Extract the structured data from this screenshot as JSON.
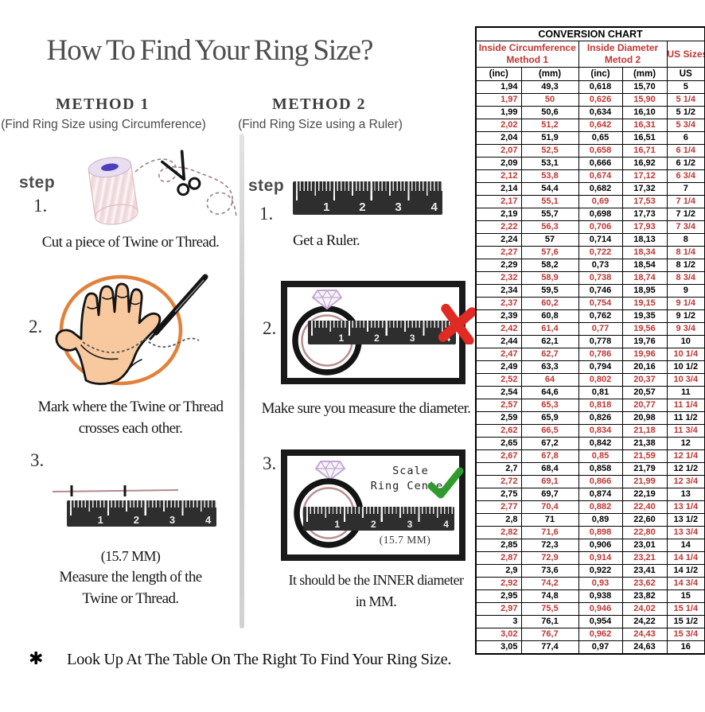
{
  "title": "How To Find Your Ring Size?",
  "footer": {
    "asterisk": "✱",
    "text": "Look Up At The Table On The Right To Find Your Ring Size."
  },
  "shared": {
    "ruler_numbers": [
      "1",
      "2",
      "3",
      "4"
    ]
  },
  "icons": [
    "twine-spool-icon",
    "scissors-icon",
    "thread-icon",
    "hand-icon",
    "pen-icon",
    "ruler-icon",
    "ring-icon",
    "diamond-icon",
    "x-mark-icon",
    "check-mark-icon",
    "asterisk-icon"
  ],
  "colors": {
    "accent_red": "#bf3632",
    "x_red": "#e02a24",
    "check_green": "#2f9b2f",
    "hand_fill": "#f8c89f",
    "circle_orange": "#e2813a",
    "diamond_lavender": "#c3a8d1",
    "ring_inner": "#b98f8f",
    "title_gray": "#4e4e4e",
    "table_border": "#000000"
  },
  "method1": {
    "heading": "METHOD 1",
    "subheading": "(Find Ring Size using Circumference)",
    "step_label": "step",
    "steps": [
      {
        "num": "1.",
        "caption": "Cut a piece of Twine or Thread."
      },
      {
        "num": "2.",
        "caption_line1": "Mark where the Twine or Thread",
        "caption_line2": "crosses each other."
      },
      {
        "num": "3.",
        "measurement": "(15.7 MM)",
        "caption_line1": "Measure the length of the",
        "caption_line2": "Twine or Thread."
      }
    ]
  },
  "method2": {
    "heading": "METHOD 2",
    "subheading": "(Find Ring Size using a Ruler)",
    "step_label": "step",
    "steps": [
      {
        "num": "1.",
        "caption": "Get a Ruler."
      },
      {
        "num": "2.",
        "caption": "Make sure you measure the diameter."
      },
      {
        "num": "3.",
        "scale_label_line1": "Scale",
        "scale_label_line2": "Ring Center",
        "measurement": "(15.7 MM)",
        "caption_line1": "It should be the INNER diameter",
        "caption_line2": "in MM."
      }
    ]
  },
  "conversion_chart": {
    "type": "table",
    "title": "CONVERSION CHART",
    "headers": {
      "group1_line1": "Inside Circumference",
      "group1_line2": "Method 1",
      "group2_line1": "Inside Diameter",
      "group2_line2": "Metod 2",
      "group3": "US Sizes"
    },
    "subheaders": [
      "(inc)",
      "(mm)",
      "(inc)",
      "(mm)",
      "US"
    ],
    "rows": [
      {
        "red": false,
        "cells": [
          "1,94",
          "49,3",
          "0,618",
          "15,70",
          "5"
        ]
      },
      {
        "red": true,
        "cells": [
          "1,97",
          "50",
          "0,626",
          "15,90",
          "5 1/4"
        ]
      },
      {
        "red": false,
        "cells": [
          "1,99",
          "50,6",
          "0,634",
          "16,10",
          "5 1/2"
        ]
      },
      {
        "red": true,
        "cells": [
          "2,02",
          "51,2",
          "0,642",
          "16,31",
          "5 3/4"
        ]
      },
      {
        "red": false,
        "cells": [
          "2,04",
          "51,9",
          "0,65",
          "16,51",
          "6"
        ]
      },
      {
        "red": true,
        "cells": [
          "2,07",
          "52,5",
          "0,658",
          "16,71",
          "6 1/4"
        ]
      },
      {
        "red": false,
        "cells": [
          "2,09",
          "53,1",
          "0,666",
          "16,92",
          "6 1/2"
        ]
      },
      {
        "red": true,
        "cells": [
          "2,12",
          "53,8",
          "0,674",
          "17,12",
          "6 3/4"
        ]
      },
      {
        "red": false,
        "cells": [
          "2,14",
          "54,4",
          "0,682",
          "17,32",
          "7"
        ]
      },
      {
        "red": true,
        "cells": [
          "2,17",
          "55,1",
          "0,69",
          "17,53",
          "7 1/4"
        ]
      },
      {
        "red": false,
        "cells": [
          "2,19",
          "55,7",
          "0,698",
          "17,73",
          "7 1/2"
        ]
      },
      {
        "red": true,
        "cells": [
          "2,22",
          "56,3",
          "0,706",
          "17,93",
          "7 3/4"
        ]
      },
      {
        "red": false,
        "cells": [
          "2,24",
          "57",
          "0,714",
          "18,13",
          "8"
        ]
      },
      {
        "red": true,
        "cells": [
          "2,27",
          "57,6",
          "0,722",
          "18,34",
          "8 1/4"
        ]
      },
      {
        "red": false,
        "cells": [
          "2,29",
          "58,2",
          "0,73",
          "18,54",
          "8 1/2"
        ]
      },
      {
        "red": true,
        "cells": [
          "2,32",
          "58,9",
          "0,738",
          "18,74",
          "8 3/4"
        ]
      },
      {
        "red": false,
        "cells": [
          "2,34",
          "59,5",
          "0,746",
          "18,95",
          "9"
        ]
      },
      {
        "red": true,
        "cells": [
          "2,37",
          "60,2",
          "0,754",
          "19,15",
          "9 1/4"
        ]
      },
      {
        "red": false,
        "cells": [
          "2,39",
          "60,8",
          "0,762",
          "19,35",
          "9 1/2"
        ]
      },
      {
        "red": true,
        "cells": [
          "2,42",
          "61,4",
          "0,77",
          "19,56",
          "9 3/4"
        ]
      },
      {
        "red": false,
        "cells": [
          "2,44",
          "62,1",
          "0,778",
          "19,76",
          "10"
        ]
      },
      {
        "red": true,
        "cells": [
          "2,47",
          "62,7",
          "0,786",
          "19,96",
          "10 1/4"
        ]
      },
      {
        "red": false,
        "cells": [
          "2,49",
          "63,3",
          "0,794",
          "20,16",
          "10 1/2"
        ]
      },
      {
        "red": true,
        "cells": [
          "2,52",
          "64",
          "0,802",
          "20,37",
          "10 3/4"
        ]
      },
      {
        "red": false,
        "cells": [
          "2,54",
          "64,6",
          "0,81",
          "20,57",
          "11"
        ]
      },
      {
        "red": true,
        "cells": [
          "2,57",
          "65,3",
          "0,818",
          "20,77",
          "11 1/4"
        ]
      },
      {
        "red": false,
        "cells": [
          "2,59",
          "65,9",
          "0,826",
          "20,98",
          "11 1/2"
        ]
      },
      {
        "red": true,
        "cells": [
          "2,62",
          "66,5",
          "0,834",
          "21,18",
          "11 3/4"
        ]
      },
      {
        "red": false,
        "cells": [
          "2,65",
          "67,2",
          "0,842",
          "21,38",
          "12"
        ]
      },
      {
        "red": true,
        "cells": [
          "2,67",
          "67,8",
          "0,85",
          "21,59",
          "12 1/4"
        ]
      },
      {
        "red": false,
        "cells": [
          "2,7",
          "68,4",
          "0,858",
          "21,79",
          "12 1/2"
        ]
      },
      {
        "red": true,
        "cells": [
          "2,72",
          "69,1",
          "0,866",
          "21,99",
          "12 3/4"
        ]
      },
      {
        "red": false,
        "cells": [
          "2,75",
          "69,7",
          "0,874",
          "22,19",
          "13"
        ]
      },
      {
        "red": true,
        "cells": [
          "2,77",
          "70,4",
          "0,882",
          "22,40",
          "13 1/4"
        ]
      },
      {
        "red": false,
        "cells": [
          "2,8",
          "71",
          "0,89",
          "22,60",
          "13 1/2"
        ]
      },
      {
        "red": true,
        "cells": [
          "2,82",
          "71,6",
          "0,898",
          "22,80",
          "13 3/4"
        ]
      },
      {
        "red": false,
        "cells": [
          "2,85",
          "72,3",
          "0,906",
          "23,01",
          "14"
        ]
      },
      {
        "red": true,
        "cells": [
          "2,87",
          "72,9",
          "0,914",
          "23,21",
          "14 1/4"
        ]
      },
      {
        "red": false,
        "cells": [
          "2,9",
          "73,6",
          "0,922",
          "23,41",
          "14 1/2"
        ]
      },
      {
        "red": true,
        "cells": [
          "2,92",
          "74,2",
          "0,93",
          "23,62",
          "14 3/4"
        ]
      },
      {
        "red": false,
        "cells": [
          "2,95",
          "74,8",
          "0,938",
          "23,82",
          "15"
        ]
      },
      {
        "red": true,
        "cells": [
          "2,97",
          "75,5",
          "0,946",
          "24,02",
          "15 1/4"
        ]
      },
      {
        "red": false,
        "cells": [
          "3",
          "76,1",
          "0,954",
          "24,22",
          "15 1/2"
        ]
      },
      {
        "red": true,
        "cells": [
          "3,02",
          "76,7",
          "0,962",
          "24,43",
          "15 3/4"
        ]
      },
      {
        "red": false,
        "cells": [
          "3,05",
          "77,4",
          "0,97",
          "24,63",
          "16"
        ]
      }
    ]
  }
}
